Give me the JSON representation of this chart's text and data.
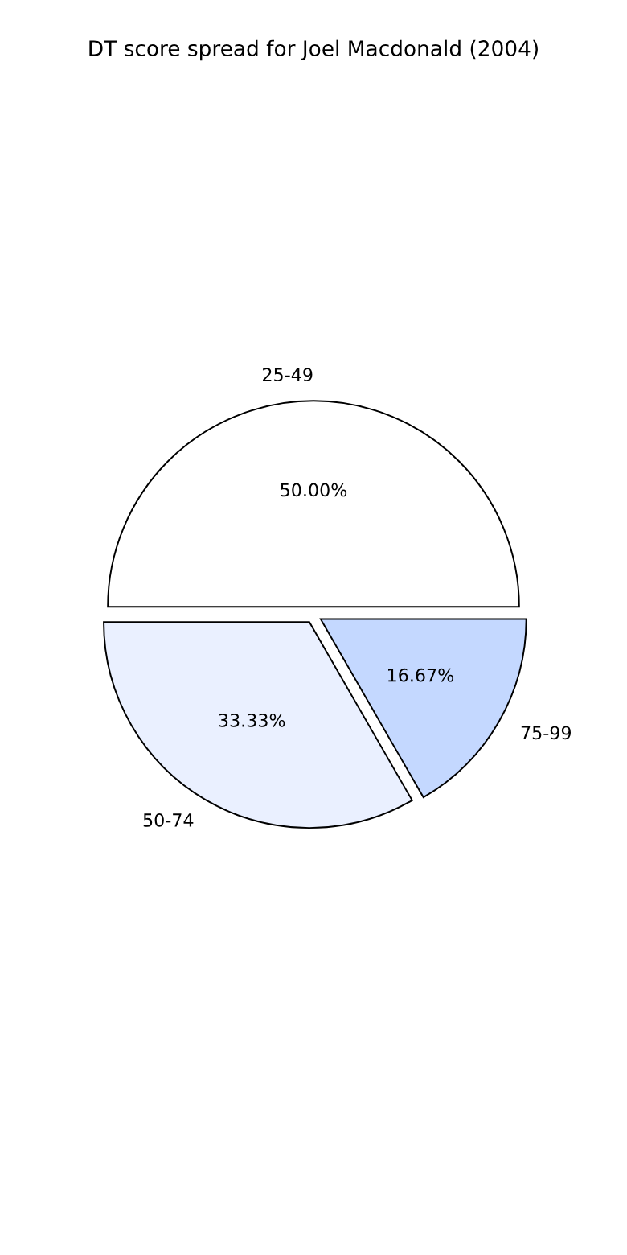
{
  "chart_data": {
    "type": "pie",
    "title": "DT score spread for Joel Macdonald (2004)",
    "categories": [
      "25-49",
      "50-74",
      "75-99"
    ],
    "values": [
      50.0,
      33.33,
      16.67
    ],
    "value_labels": [
      "50.00%",
      "33.33%",
      "16.67%"
    ],
    "colors": [
      "#ffffff",
      "#eaf0ff",
      "#c4d8ff"
    ]
  }
}
